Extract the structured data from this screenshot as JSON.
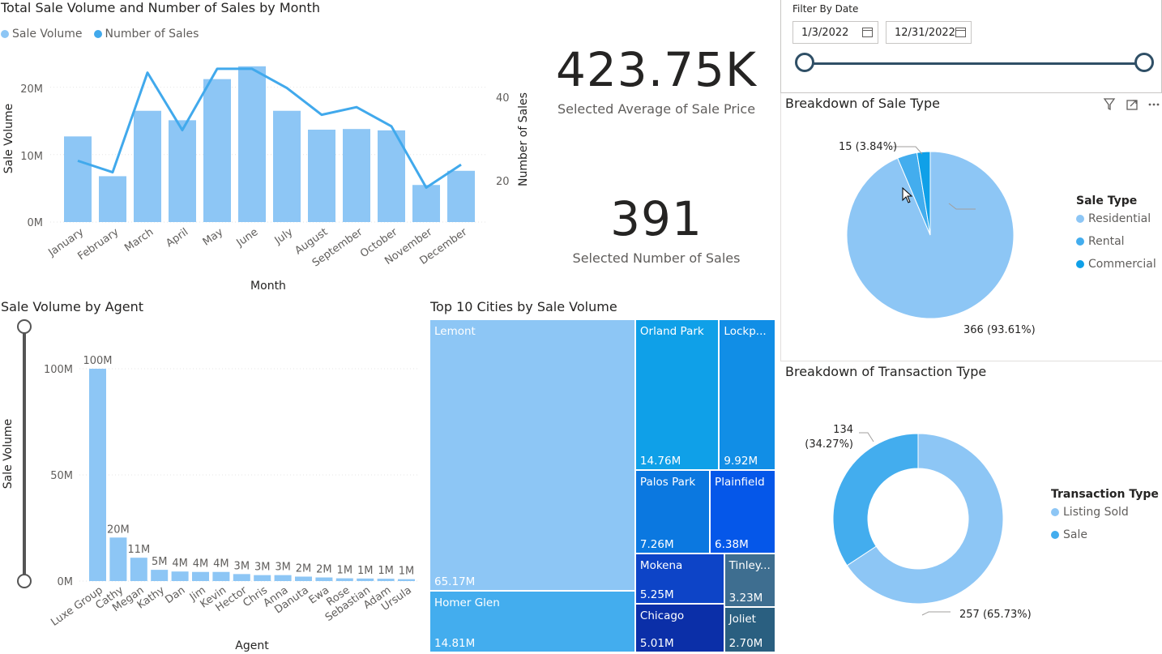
{
  "monthly": {
    "title": "Total Sale Volume and Number of Sales by Month",
    "legend": [
      "Sale Volume",
      "Number of Sales"
    ],
    "xlabel": "Month",
    "ylabel_left": "Sale Volume",
    "ylabel_right": "Number of Sales",
    "y_left_ticks": [
      "0M",
      "10M",
      "20M"
    ],
    "y_right_ticks": [
      "20",
      "40"
    ]
  },
  "cards": {
    "avg_value": "423.75K",
    "avg_label": "Selected Average of Sale Price",
    "count_value": "391",
    "count_label": "Selected Number of Sales"
  },
  "filter": {
    "title": "Filter By Date",
    "start": "1/3/2022",
    "end": "12/31/2022"
  },
  "agent": {
    "title": "Sale Volume by Agent",
    "xlabel": "Agent",
    "ylabel": "Sale Volume",
    "y_ticks": [
      "0M",
      "50M",
      "100M"
    ]
  },
  "cities": {
    "title": "Top 10 Cities by Sale Volume"
  },
  "sale_type": {
    "title": "Breakdown of Sale Type",
    "legend_title": "Sale Type",
    "legend": [
      "Residential",
      "Rental",
      "Commercial"
    ],
    "labels": [
      "366 (93.61%)",
      "15 (3.84%)"
    ]
  },
  "transaction": {
    "title": "Breakdown of Transaction Type",
    "legend_title": "Transaction Type",
    "legend": [
      "Listing Sold",
      "Sale"
    ],
    "label_a": "257 (65.73%)",
    "label_b_1": "134",
    "label_b_2": "(34.27%)"
  },
  "colors": {
    "light": "#8dc6f5",
    "mid": "#43adee",
    "strong": "#0fa0e8",
    "line": "#41a9ec"
  },
  "chart_data": [
    {
      "type": "bar",
      "title": "Total Sale Volume and Number of Sales by Month",
      "categories": [
        "January",
        "February",
        "March",
        "April",
        "May",
        "June",
        "July",
        "August",
        "September",
        "October",
        "November",
        "December"
      ],
      "series": [
        {
          "name": "Sale Volume",
          "type": "bar",
          "values": [
            12.7,
            6.8,
            16.5,
            15.1,
            21.2,
            23.1,
            16.5,
            13.7,
            13.8,
            13.6,
            5.5,
            7.6
          ]
        },
        {
          "name": "Number of Sales",
          "type": "line",
          "values": [
            23,
            20,
            46,
            31,
            47,
            47,
            42,
            35,
            37,
            32,
            16,
            22
          ]
        }
      ],
      "xlabel": "Month",
      "ylabel": "Sale Volume",
      "y2label": "Number of Sales",
      "ylim": [
        0,
        25
      ],
      "y2lim": [
        7,
        51
      ],
      "legend": "top-left"
    },
    {
      "type": "bar",
      "title": "Sale Volume by Agent",
      "categories": [
        "Luxe Group",
        "Cathy",
        "Megan",
        "Kathy",
        "Dan",
        "Jim",
        "Kevin",
        "Hector",
        "Chris",
        "Anna",
        "Danuta",
        "Ewa",
        "Rose",
        "Sebastian",
        "Adam",
        "Ursula"
      ],
      "values": [
        100,
        20.5,
        11,
        5.3,
        4.5,
        4.3,
        4.3,
        3.3,
        2.8,
        2.8,
        2.1,
        1.7,
        1.3,
        1.2,
        1.1,
        0.9
      ],
      "data_labels": [
        "100M",
        "20M",
        "11M",
        "5M",
        "4M",
        "4M",
        "4M",
        "3M",
        "3M",
        "3M",
        "2M",
        "2M",
        "1M",
        "1M",
        "1M",
        "1M"
      ],
      "xlabel": "Agent",
      "ylabel": "Sale Volume",
      "ylim": [
        0,
        100
      ]
    },
    {
      "type": "treemap",
      "title": "Top 10 Cities by Sale Volume",
      "categories": [
        "Lemont",
        "Homer Glen",
        "Orland Park",
        "Lockp...",
        "Palos Park",
        "Plainfield",
        "Mokena",
        "Chicago",
        "Tinley...",
        "Joliet"
      ],
      "values": [
        65.17,
        14.81,
        14.76,
        9.92,
        7.26,
        6.38,
        5.25,
        5.01,
        3.23,
        2.7
      ],
      "data_labels": [
        "65.17M",
        "14.81M",
        "14.76M",
        "9.92M",
        "7.26M",
        "6.38M",
        "5.25M",
        "5.01M",
        "3.23M",
        "2.70M"
      ]
    },
    {
      "type": "pie",
      "title": "Breakdown of Sale Type",
      "categories": [
        "Residential",
        "Rental",
        "Commercial"
      ],
      "values": [
        366,
        15,
        10
      ],
      "data_labels": [
        "366 (93.61%)",
        "15 (3.84%)",
        ""
      ]
    },
    {
      "type": "pie",
      "title": "Breakdown of Transaction Type",
      "donut": true,
      "categories": [
        "Listing Sold",
        "Sale"
      ],
      "values": [
        257,
        134
      ],
      "data_labels": [
        "257 (65.73%)",
        "134 (34.27%)"
      ]
    }
  ]
}
